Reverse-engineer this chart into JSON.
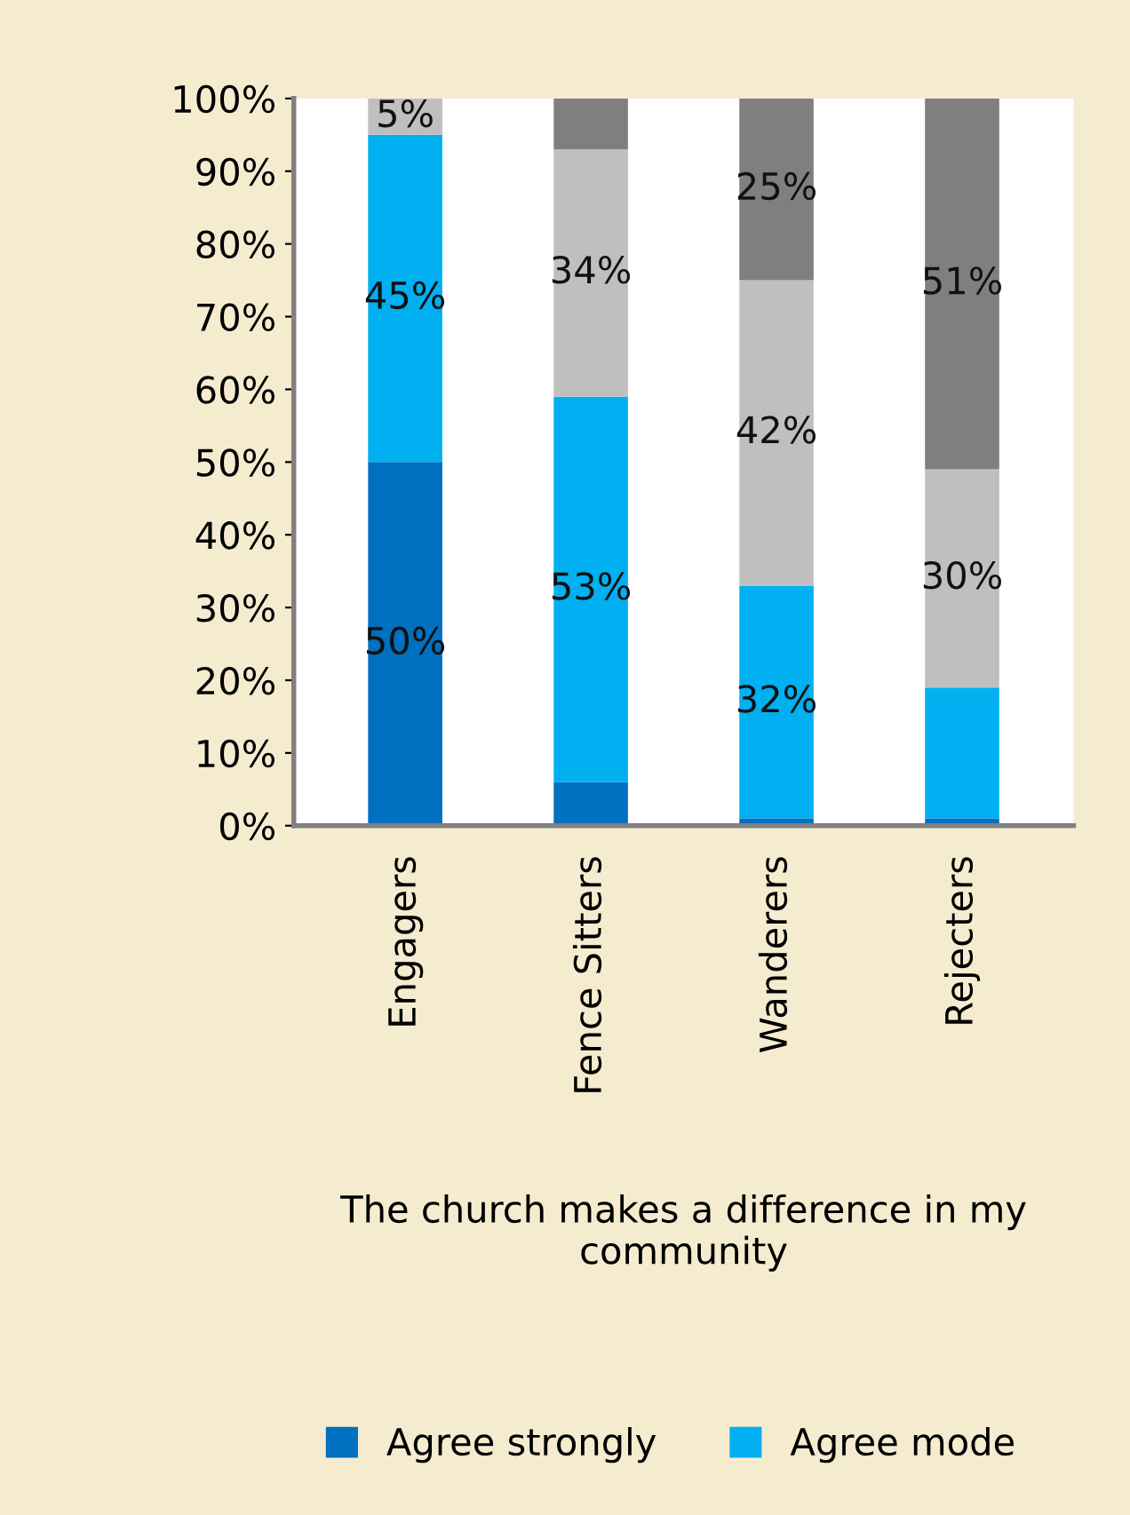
{
  "chart_data": {
    "type": "bar",
    "stacked": true,
    "categories": [
      "Engagers",
      "Fence Sitters",
      "Wanderers",
      "Rejecters"
    ],
    "xlabel": "The church makes a difference in my community",
    "series": [
      {
        "name": "Agree strongly",
        "color": "#0070c0",
        "values": [
          50,
          6,
          1,
          1
        ],
        "value_labels": [
          "50%",
          null,
          null,
          null
        ]
      },
      {
        "name": "Agree mode",
        "color": "#00b0f0",
        "values": [
          45,
          53,
          32,
          18
        ],
        "value_labels": [
          "45%",
          "53%",
          "32%",
          null
        ]
      },
      {
        "color": "#bfbfbf",
        "values": [
          5,
          34,
          42,
          30
        ],
        "value_labels": [
          "5%",
          "34%",
          "42%",
          "30%"
        ]
      },
      {
        "color": "#7f7f7f",
        "values": [
          0,
          7,
          25,
          51
        ],
        "value_labels": [
          null,
          null,
          "25%",
          "51%"
        ]
      }
    ],
    "ylim": [
      0,
      100
    ],
    "yticks": [
      {
        "value": 0,
        "label": "0%"
      },
      {
        "value": 10,
        "label": "10%"
      },
      {
        "value": 20,
        "label": "20%"
      },
      {
        "value": 30,
        "label": "30%"
      },
      {
        "value": 40,
        "label": "40%"
      },
      {
        "value": 50,
        "label": "50%"
      },
      {
        "value": 60,
        "label": "60%"
      },
      {
        "value": 70,
        "label": "70%"
      },
      {
        "value": 80,
        "label": "80%"
      },
      {
        "value": 90,
        "label": "90%"
      },
      {
        "value": 100,
        "label": "100%"
      }
    ],
    "grid": false,
    "legend": "bottom"
  }
}
